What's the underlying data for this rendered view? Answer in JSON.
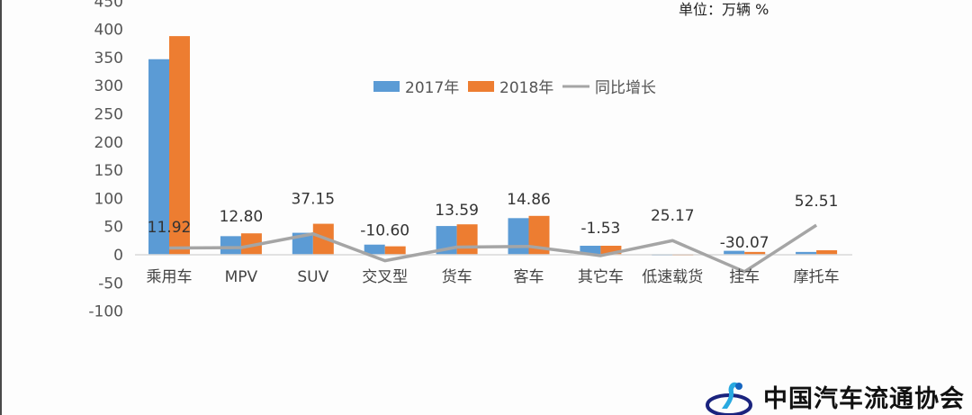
{
  "unit_label": "单位：万辆  %",
  "logo": {
    "text": "中国汽车流通协会",
    "icon": "association-logo-icon"
  },
  "colors": {
    "s2017": "#5b9bd5",
    "s2018": "#ed7d31",
    "growth": "#a5a5a5",
    "axis": "#d9d9d9"
  },
  "chart_data": {
    "type": "bar",
    "title": "",
    "xlabel": "",
    "ylabel": "",
    "ylim": [
      -100,
      450
    ],
    "yticks": [
      450,
      400,
      350,
      300,
      250,
      200,
      150,
      100,
      50,
      0,
      -50,
      -100
    ],
    "grid": false,
    "legend_position": "top-center",
    "categories": [
      "乘用车",
      "MPV",
      "SUV",
      "交叉型",
      "货车",
      "客车",
      "其它车",
      "低速载货",
      "挂车",
      "摩托车"
    ],
    "series": [
      {
        "name": "2017年",
        "type": "bar",
        "values": [
          347,
          33,
          39,
          18,
          51,
          65,
          16,
          1,
          7,
          5
        ]
      },
      {
        "name": "2018年",
        "type": "bar",
        "values": [
          388,
          38,
          55,
          15,
          54,
          69,
          16,
          1,
          5,
          8
        ]
      },
      {
        "name": "同比增长",
        "type": "line",
        "values": [
          11.92,
          12.8,
          37.15,
          -10.6,
          13.59,
          14.86,
          -1.53,
          25.17,
          -30.07,
          52.51
        ],
        "labels": [
          "11.92",
          "12.80",
          "37.15",
          "-10.60",
          "13.59",
          "14.86",
          "-1.53",
          "25.17",
          "-30.07",
          "52.51"
        ]
      }
    ]
  }
}
